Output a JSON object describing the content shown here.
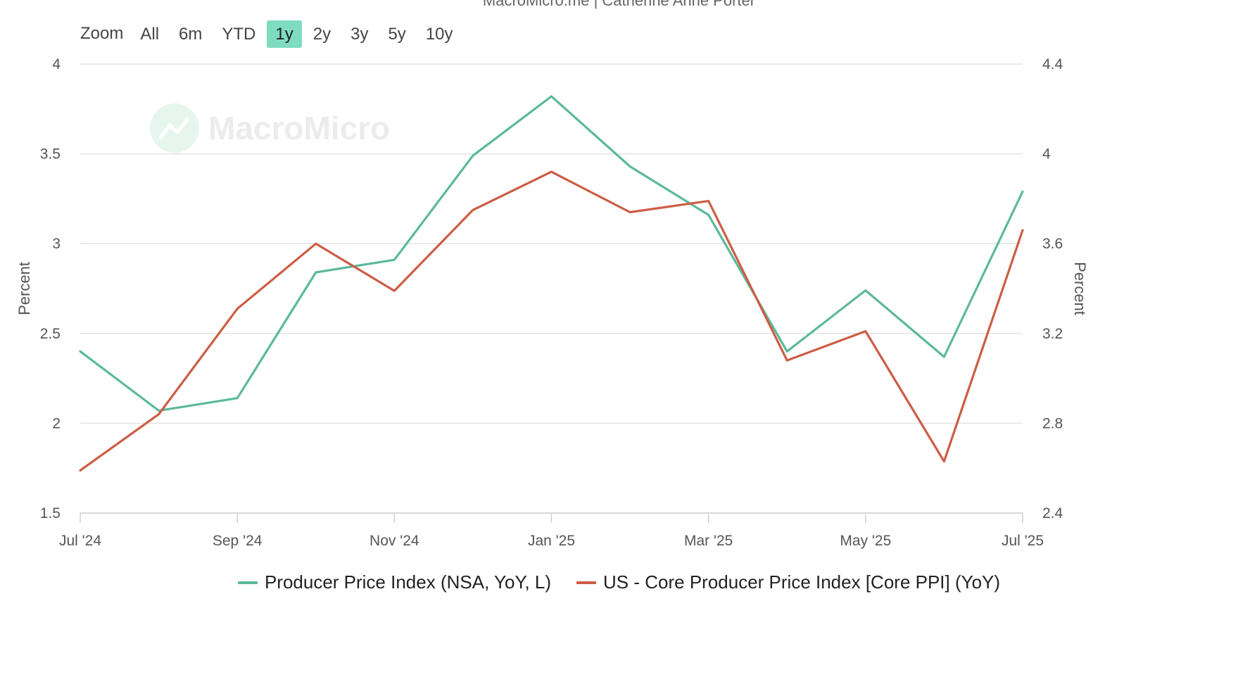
{
  "header": {
    "subtitle": "MacroMicro.me | Catherine Anne Porter"
  },
  "toolbar": {
    "zoom_label": "Zoom",
    "buttons": [
      "All",
      "6m",
      "YTD",
      "1y",
      "2y",
      "3y",
      "5y",
      "10y"
    ],
    "active": "1y",
    "active_color": "#7fdcc0"
  },
  "watermark": {
    "text": "MacroMicro"
  },
  "chart_data": {
    "type": "line",
    "x": [
      "2024-07",
      "2024-08",
      "2024-09",
      "2024-10",
      "2024-11",
      "2024-12",
      "2025-01",
      "2025-02",
      "2025-03",
      "2025-04",
      "2025-05",
      "2025-06",
      "2025-07"
    ],
    "x_tick_labels": [
      "Jul '24",
      "Sep '24",
      "Nov '24",
      "Jan '25",
      "Mar '25",
      "May '25",
      "Jul '25"
    ],
    "x_tick_positions": [
      "2024-07",
      "2024-09",
      "2024-11",
      "2025-01",
      "2025-03",
      "2025-05",
      "2025-07"
    ],
    "left_axis": {
      "label": "Percent",
      "ticks": [
        "1.5",
        "2",
        "2.5",
        "3",
        "3.5",
        "4"
      ],
      "range": [
        1.5,
        4
      ]
    },
    "right_axis": {
      "label": "Percent",
      "ticks": [
        "2.4",
        "2.8",
        "3.2",
        "3.6",
        "4",
        "4.4"
      ],
      "range": [
        2.4,
        4.4
      ]
    },
    "grid": true,
    "legend_position": "bottom",
    "series": [
      {
        "name": "Producer Price Index (NSA, YoY, L)",
        "axis": "left",
        "color": "#5cb99b",
        "values": [
          2.4,
          2.07,
          2.14,
          2.84,
          2.91,
          3.49,
          3.82,
          3.43,
          3.16,
          2.4,
          2.74,
          2.37,
          3.29
        ]
      },
      {
        "name": "US - Core Producer Price Index [Core PPI] (YoY)",
        "axis": "right",
        "color": "#cc5d45",
        "values": [
          2.59,
          2.84,
          3.31,
          3.6,
          3.39,
          3.75,
          3.92,
          3.74,
          3.79,
          3.08,
          3.21,
          2.63,
          3.66
        ]
      }
    ]
  }
}
